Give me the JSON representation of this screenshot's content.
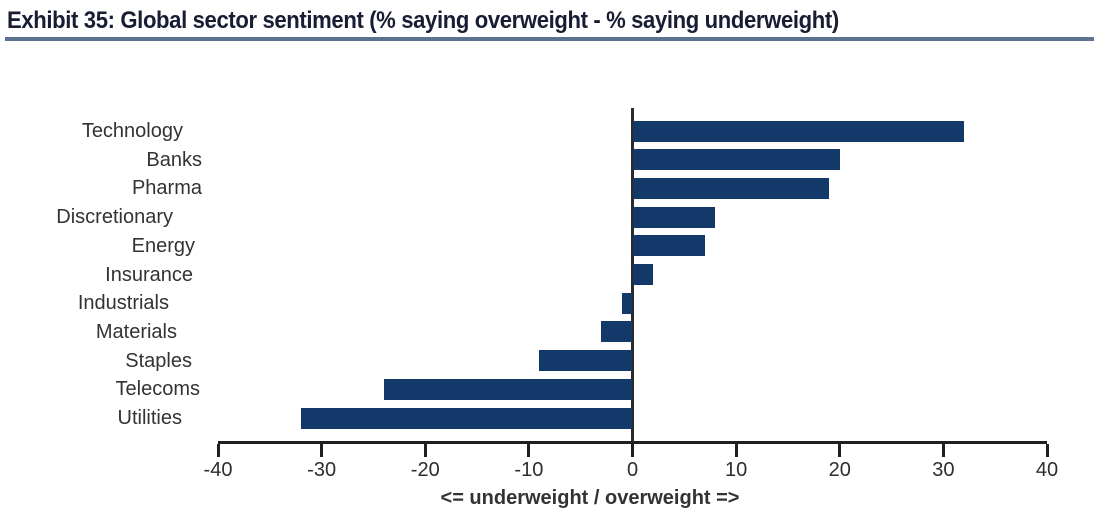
{
  "header": {
    "title": "Exhibit 35: Global sector sentiment (% saying overweight - % saying underweight)"
  },
  "chart_data": {
    "type": "bar",
    "orientation": "horizontal",
    "title": "Exhibit 35: Global sector sentiment (% saying overweight - % saying underweight)",
    "categories": [
      "Technology",
      "Banks",
      "Pharma",
      "Discretionary",
      "Energy",
      "Insurance",
      "Industrials",
      "Materials",
      "Staples",
      "Telecoms",
      "Utilities"
    ],
    "values": [
      32,
      20,
      19,
      8,
      7,
      2,
      -1,
      -3,
      -9,
      -24,
      -32
    ],
    "xlabel": "<= underweight / overweight =>",
    "ylabel": "",
    "xlim": [
      -40,
      40
    ],
    "xticks": [
      -40,
      -30,
      -20,
      -10,
      0,
      10,
      20,
      30,
      40
    ],
    "grid": false,
    "legend": null,
    "bar_color": "#13396b"
  },
  "colors": {
    "bar": "#13396b",
    "title_text": "#181d33",
    "title_underline": "#5b7390",
    "axis": "#1f1f1f",
    "tick_text": "#2d2d2d",
    "background": "#ffffff"
  }
}
